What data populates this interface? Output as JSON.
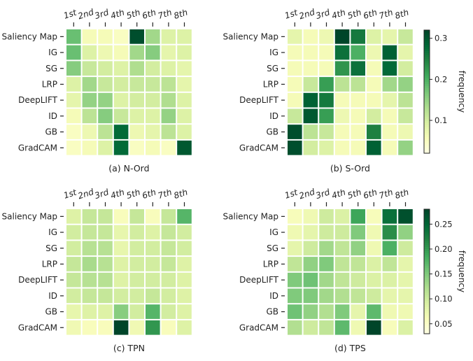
{
  "figure": {
    "row_labels": [
      "Saliency Map",
      "IG",
      "SG",
      "LRP",
      "DeepLIFT",
      "ID",
      "GB",
      "GradCAM"
    ],
    "col_labels": [
      "1st",
      "2nd",
      "3rd",
      "4th",
      "5th",
      "6th",
      "7th",
      "8th"
    ],
    "colormap": [
      "#ffffe5",
      "#f7fcb9",
      "#d9f0a3",
      "#addd8e",
      "#78c679",
      "#41ab5d",
      "#238443",
      "#006837",
      "#004529"
    ]
  },
  "chart_data": [
    {
      "type": "heatmap",
      "title": "(a) N-Ord",
      "rows": [
        "Saliency Map",
        "IG",
        "SG",
        "LRP",
        "DeepLIFT",
        "ID",
        "GB",
        "GradCAM"
      ],
      "cols": [
        "1st",
        "2nd",
        "3rd",
        "4th",
        "5th",
        "6th",
        "7th",
        "8th"
      ],
      "vmin": 0.02,
      "vmax": 0.32,
      "colorbar": null,
      "values": [
        [
          0.18,
          0.06,
          0.06,
          0.05,
          0.31,
          0.14,
          0.09,
          0.09
        ],
        [
          0.18,
          0.09,
          0.07,
          0.06,
          0.14,
          0.16,
          0.08,
          0.09
        ],
        [
          0.16,
          0.11,
          0.1,
          0.09,
          0.13,
          0.1,
          0.09,
          0.08
        ],
        [
          0.09,
          0.14,
          0.11,
          0.1,
          0.11,
          0.11,
          0.12,
          0.08
        ],
        [
          0.08,
          0.15,
          0.15,
          0.09,
          0.1,
          0.1,
          0.13,
          0.09
        ],
        [
          0.06,
          0.12,
          0.16,
          0.11,
          0.09,
          0.09,
          0.15,
          0.09
        ],
        [
          0.05,
          0.07,
          0.12,
          0.28,
          0.07,
          0.08,
          0.12,
          0.09
        ],
        [
          0.05,
          0.06,
          0.09,
          0.28,
          0.05,
          0.06,
          0.05,
          0.3
        ]
      ]
    },
    {
      "type": "heatmap",
      "title": "(b) S-Ord",
      "rows": [
        "Saliency Map",
        "IG",
        "SG",
        "LRP",
        "DeepLIFT",
        "ID",
        "GB",
        "GradCAM"
      ],
      "cols": [
        "1st",
        "2nd",
        "3rd",
        "4th",
        "5th",
        "6th",
        "7th",
        "8th"
      ],
      "vmin": 0.02,
      "vmax": 0.32,
      "colorbar": {
        "label": "frequency",
        "ticks": [
          0.1,
          0.2,
          0.3
        ],
        "tick_labels": [
          "0.1",
          "0.2",
          "0.3"
        ]
      },
      "values": [
        [
          0.08,
          0.06,
          0.07,
          0.32,
          0.26,
          0.09,
          0.08,
          0.11
        ],
        [
          0.06,
          0.06,
          0.06,
          0.27,
          0.2,
          0.07,
          0.29,
          0.08
        ],
        [
          0.06,
          0.06,
          0.06,
          0.23,
          0.27,
          0.06,
          0.28,
          0.1
        ],
        [
          0.06,
          0.11,
          0.22,
          0.12,
          0.12,
          0.06,
          0.14,
          0.15
        ],
        [
          0.06,
          0.29,
          0.26,
          0.06,
          0.06,
          0.06,
          0.08,
          0.12
        ],
        [
          0.11,
          0.3,
          0.22,
          0.07,
          0.06,
          0.1,
          0.06,
          0.11
        ],
        [
          0.31,
          0.12,
          0.11,
          0.06,
          0.06,
          0.25,
          0.06,
          0.07
        ],
        [
          0.31,
          0.1,
          0.09,
          0.06,
          0.06,
          0.29,
          0.06,
          0.15
        ]
      ]
    },
    {
      "type": "heatmap",
      "title": "(c) TPN",
      "rows": [
        "Saliency Map",
        "IG",
        "SG",
        "LRP",
        "DeepLIFT",
        "ID",
        "GB",
        "GradCAM"
      ],
      "cols": [
        "1st",
        "2nd",
        "3rd",
        "4th",
        "5th",
        "6th",
        "7th",
        "8th"
      ],
      "vmin": 0.02,
      "vmax": 0.28,
      "colorbar": null,
      "values": [
        [
          0.08,
          0.1,
          0.1,
          0.05,
          0.1,
          0.05,
          0.1,
          0.17
        ],
        [
          0.09,
          0.1,
          0.1,
          0.07,
          0.09,
          0.08,
          0.1,
          0.09
        ],
        [
          0.09,
          0.11,
          0.11,
          0.07,
          0.09,
          0.09,
          0.1,
          0.09
        ],
        [
          0.1,
          0.12,
          0.11,
          0.08,
          0.09,
          0.09,
          0.1,
          0.08
        ],
        [
          0.1,
          0.11,
          0.11,
          0.08,
          0.09,
          0.09,
          0.09,
          0.08
        ],
        [
          0.09,
          0.1,
          0.1,
          0.09,
          0.09,
          0.1,
          0.09,
          0.08
        ],
        [
          0.07,
          0.08,
          0.08,
          0.14,
          0.09,
          0.17,
          0.09,
          0.08
        ],
        [
          0.06,
          0.05,
          0.05,
          0.28,
          0.06,
          0.2,
          0.05,
          0.08
        ]
      ]
    },
    {
      "type": "heatmap",
      "title": "(d) TPS",
      "rows": [
        "Saliency Map",
        "IG",
        "SG",
        "LRP",
        "DeepLIFT",
        "ID",
        "GB",
        "GradCAM"
      ],
      "cols": [
        "1st",
        "2nd",
        "3rd",
        "4th",
        "5th",
        "6th",
        "7th",
        "8th"
      ],
      "vmin": 0.03,
      "vmax": 0.28,
      "colorbar": {
        "label": "frequency",
        "ticks": [
          0.05,
          0.1,
          0.15,
          0.2,
          0.25
        ],
        "tick_labels": [
          "0.05",
          "0.10",
          "0.15",
          "0.20",
          "0.25"
        ]
      },
      "values": [
        [
          0.06,
          0.07,
          0.1,
          0.09,
          0.19,
          0.06,
          0.24,
          0.27
        ],
        [
          0.07,
          0.08,
          0.1,
          0.1,
          0.15,
          0.07,
          0.21,
          0.14
        ],
        [
          0.08,
          0.1,
          0.13,
          0.11,
          0.14,
          0.07,
          0.18,
          0.1
        ],
        [
          0.11,
          0.14,
          0.15,
          0.11,
          0.11,
          0.09,
          0.11,
          0.08
        ],
        [
          0.15,
          0.16,
          0.13,
          0.11,
          0.1,
          0.09,
          0.09,
          0.08
        ],
        [
          0.15,
          0.15,
          0.13,
          0.12,
          0.11,
          0.1,
          0.08,
          0.08
        ],
        [
          0.16,
          0.14,
          0.12,
          0.15,
          0.08,
          0.17,
          0.07,
          0.07
        ],
        [
          0.12,
          0.1,
          0.11,
          0.17,
          0.07,
          0.28,
          0.06,
          0.09
        ]
      ]
    }
  ]
}
